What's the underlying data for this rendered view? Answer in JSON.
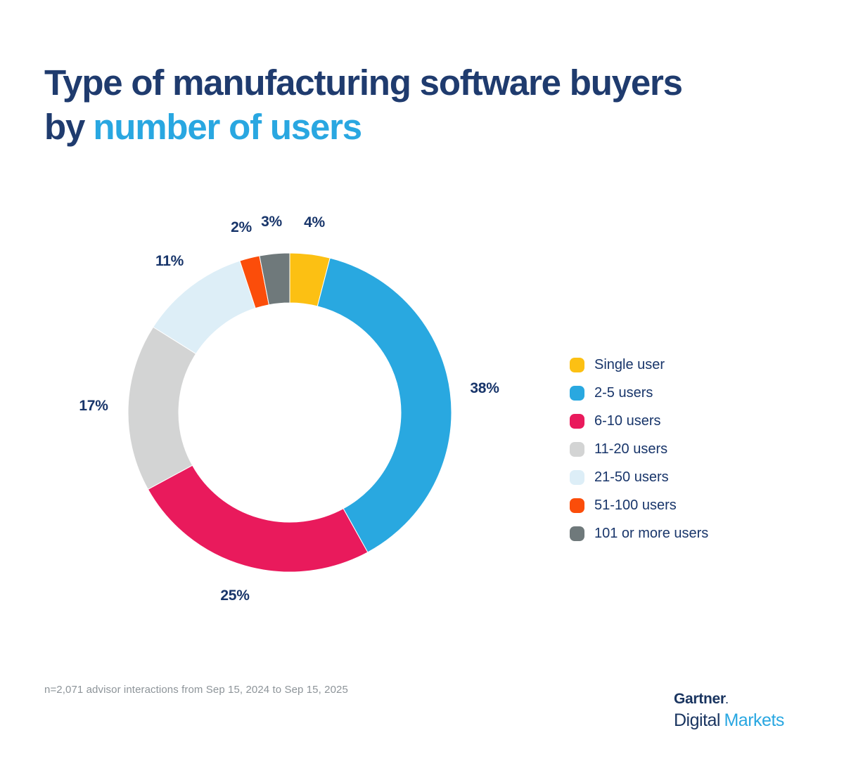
{
  "header": {
    "title_line1": "Type of manufacturing software buyers",
    "title_line2_prefix": "by",
    "title_line2_highlight": "number of users"
  },
  "chart_data": {
    "type": "pie",
    "subtype": "donut",
    "title": "Type of manufacturing software buyers by number of users",
    "direction": "clockwise",
    "start_angle_deg": 0,
    "legend_position": "right",
    "data_labels": "percent, outside ring",
    "units": "%",
    "series": [
      {
        "label": "Single user",
        "value": 4,
        "color": "#FCC013"
      },
      {
        "label": "2-5 users",
        "value": 38,
        "color": "#29A8E0"
      },
      {
        "label": "6-10 users",
        "value": 25,
        "color": "#E91A5C"
      },
      {
        "label": "11-20 users",
        "value": 17,
        "color": "#D3D4D4"
      },
      {
        "label": "21-50 users",
        "value": 11,
        "color": "#DDEEF7"
      },
      {
        "label": "51-100 users",
        "value": 2,
        "color": "#FB4D0A"
      },
      {
        "label": "101 or more users",
        "value": 3,
        "color": "#6F797B"
      }
    ]
  },
  "footer": {
    "note": "n=2,071 advisor interactions from Sep 15, 2024 to Sep 15, 2025"
  },
  "logo": {
    "line1": "Gartner",
    "mark": ".",
    "line2_part1": "Digital",
    "line2_part2": "Markets"
  },
  "colors": {
    "title_navy": "#1F3B6E",
    "accent_blue": "#29A7E1",
    "text_navy": "#18356A",
    "footer_gray": "#8D9499",
    "logo_navy": "#1A3560",
    "bg": "#FFFFFF"
  }
}
